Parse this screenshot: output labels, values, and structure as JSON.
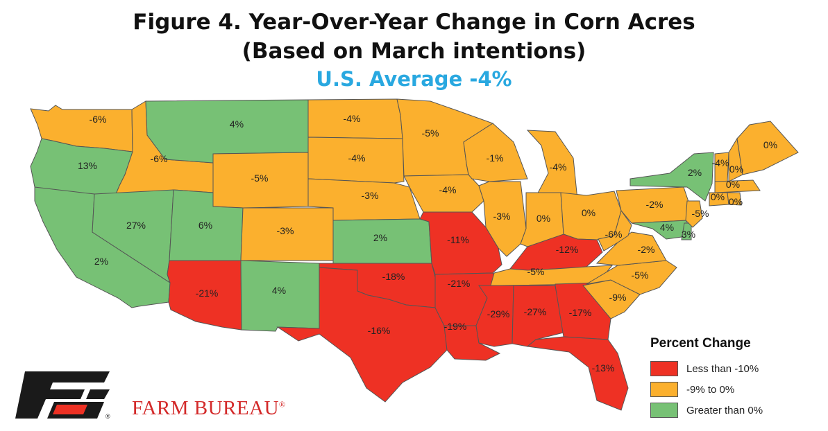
{
  "title": {
    "line1": "Figure 4. Year-Over-Year Change in Corn Acres",
    "line2": "(Based on March intentions)",
    "line3": "U.S. Average -4%"
  },
  "colors": {
    "red": "#ee3124",
    "orange": "#fbb02e",
    "green": "#77c175",
    "title_blue": "#29a8e0",
    "brand_red": "#d32a2a"
  },
  "legend": {
    "title": "Percent Change",
    "items": [
      {
        "label": "Less than -10%",
        "color": "#ee3124"
      },
      {
        "label": "-9% to 0%",
        "color": "#fbb02e"
      },
      {
        "label": "Greater than 0%",
        "color": "#77c175"
      }
    ]
  },
  "brand": {
    "name": "FARM BUREAU",
    "registered": "®"
  },
  "states": [
    {
      "abbr": "WA",
      "value": "-6%",
      "cat": "orange"
    },
    {
      "abbr": "OR",
      "value": "13%",
      "cat": "green"
    },
    {
      "abbr": "CA",
      "value": "2%",
      "cat": "green"
    },
    {
      "abbr": "ID",
      "value": "-6%",
      "cat": "orange"
    },
    {
      "abbr": "NV",
      "value": "27%",
      "cat": "green"
    },
    {
      "abbr": "MT",
      "value": "4%",
      "cat": "green"
    },
    {
      "abbr": "WY",
      "value": "-5%",
      "cat": "orange"
    },
    {
      "abbr": "UT",
      "value": "6%",
      "cat": "green"
    },
    {
      "abbr": "AZ",
      "value": "-21%",
      "cat": "red"
    },
    {
      "abbr": "CO",
      "value": "-3%",
      "cat": "orange"
    },
    {
      "abbr": "NM",
      "value": "4%",
      "cat": "green"
    },
    {
      "abbr": "ND",
      "value": "-4%",
      "cat": "orange"
    },
    {
      "abbr": "SD",
      "value": "-4%",
      "cat": "orange"
    },
    {
      "abbr": "NE",
      "value": "-3%",
      "cat": "orange"
    },
    {
      "abbr": "KS",
      "value": "2%",
      "cat": "green"
    },
    {
      "abbr": "OK",
      "value": "-18%",
      "cat": "red"
    },
    {
      "abbr": "TX",
      "value": "-16%",
      "cat": "red"
    },
    {
      "abbr": "MN",
      "value": "-5%",
      "cat": "orange"
    },
    {
      "abbr": "IA",
      "value": "-4%",
      "cat": "orange"
    },
    {
      "abbr": "MO",
      "value": "-11%",
      "cat": "red"
    },
    {
      "abbr": "AR",
      "value": "-21%",
      "cat": "red"
    },
    {
      "abbr": "LA",
      "value": "-19%",
      "cat": "red"
    },
    {
      "abbr": "WI",
      "value": "-1%",
      "cat": "orange"
    },
    {
      "abbr": "IL",
      "value": "-3%",
      "cat": "orange"
    },
    {
      "abbr": "MI",
      "value": "-4%",
      "cat": "orange"
    },
    {
      "abbr": "IN",
      "value": "0%",
      "cat": "orange"
    },
    {
      "abbr": "OH",
      "value": "0%",
      "cat": "orange"
    },
    {
      "abbr": "KY",
      "value": "-12%",
      "cat": "red"
    },
    {
      "abbr": "TN",
      "value": "-5%",
      "cat": "orange"
    },
    {
      "abbr": "MS",
      "value": "-29%",
      "cat": "red"
    },
    {
      "abbr": "AL",
      "value": "-27%",
      "cat": "red"
    },
    {
      "abbr": "GA",
      "value": "-17%",
      "cat": "red"
    },
    {
      "abbr": "FL",
      "value": "-13%",
      "cat": "red"
    },
    {
      "abbr": "SC",
      "value": "-9%",
      "cat": "orange"
    },
    {
      "abbr": "NC",
      "value": "-5%",
      "cat": "orange"
    },
    {
      "abbr": "VA",
      "value": "-2%",
      "cat": "orange"
    },
    {
      "abbr": "WV",
      "value": "-6%",
      "cat": "orange"
    },
    {
      "abbr": "PA",
      "value": "-2%",
      "cat": "orange"
    },
    {
      "abbr": "NY",
      "value": "2%",
      "cat": "green"
    },
    {
      "abbr": "MD",
      "value": "4%",
      "cat": "green"
    },
    {
      "abbr": "DE",
      "value": "3%",
      "cat": "green"
    },
    {
      "abbr": "NJ",
      "value": "-5%",
      "cat": "orange"
    },
    {
      "abbr": "VT",
      "value": "-4%",
      "cat": "orange"
    },
    {
      "abbr": "NH",
      "value": "0%",
      "cat": "orange"
    },
    {
      "abbr": "ME",
      "value": "0%",
      "cat": "orange"
    },
    {
      "abbr": "MA",
      "value": "0%",
      "cat": "orange"
    },
    {
      "abbr": "CT",
      "value": "0%",
      "cat": "orange"
    },
    {
      "abbr": "RI",
      "value": "0%",
      "cat": "orange"
    }
  ]
}
